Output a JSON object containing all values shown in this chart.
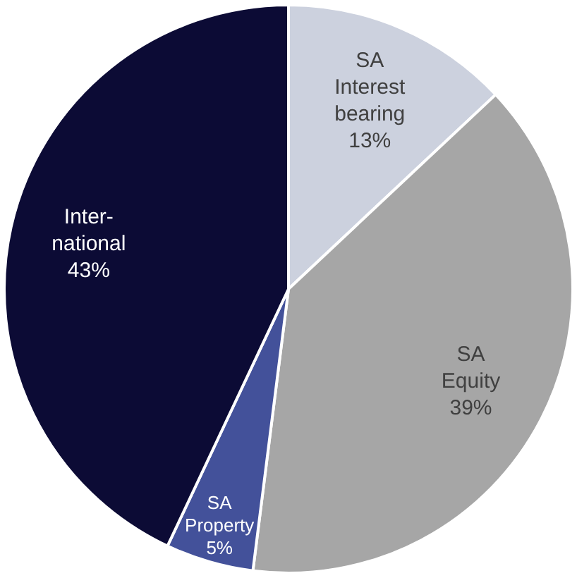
{
  "chart_data": {
    "type": "pie",
    "categories": [
      "SA\nInterest\nbearing",
      "SA\nEquity",
      "SA\nProperty",
      "Inter-\nnational"
    ],
    "values": [
      13,
      39,
      5,
      43
    ],
    "colors": [
      "#ccd1de",
      "#a6a6a6",
      "#43519a",
      "#0c0b35"
    ],
    "value_labels": [
      "13%",
      "39%",
      "5%",
      "43%"
    ],
    "legend": false
  }
}
